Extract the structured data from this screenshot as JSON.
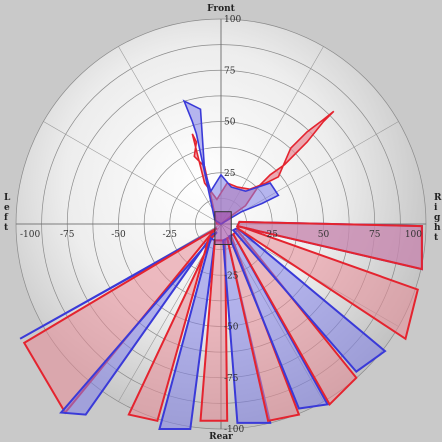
{
  "chart_data": {
    "type": "polar-area",
    "direction_labels": {
      "front": "Front",
      "rear": "Rear",
      "left": "Left",
      "right": "Right"
    },
    "radial_ticks": {
      "vertical": [
        "100",
        "75",
        "50",
        "25",
        "-25",
        "-50",
        "-75",
        "-100"
      ],
      "horizontal": [
        "-100",
        "-75",
        "-50",
        "-25",
        "25",
        "50",
        "75",
        "100"
      ]
    },
    "range": [
      -100,
      100
    ],
    "grid": true,
    "colors": {
      "blue": "#3a3ad8",
      "red": "#e4242f",
      "blue_fill": "#8080e8",
      "red_fill": "#e88a95",
      "purple_fill": "#a04aa8"
    },
    "series": [
      {
        "color": "blue",
        "points": [
          [
            -2,
            -2
          ],
          [
            -98,
            -56
          ],
          [
            -5,
            -4
          ]
        ]
      },
      {
        "color": "red",
        "points": [
          [
            -2,
            -2
          ],
          [
            -96,
            -58
          ],
          [
            -76,
            -92
          ],
          [
            -5,
            -5
          ]
        ]
      },
      {
        "color": "blue",
        "points": [
          [
            -2,
            -4
          ],
          [
            -78,
            -92
          ],
          [
            -66,
            -93
          ],
          [
            -4,
            -5
          ]
        ]
      },
      {
        "color": "red",
        "points": [
          [
            -4,
            -6
          ],
          [
            -45,
            -93
          ],
          [
            -31,
            -96
          ],
          [
            -6,
            -7
          ]
        ]
      },
      {
        "color": "blue",
        "points": [
          [
            -5,
            -7
          ],
          [
            -30,
            -100
          ],
          [
            -15,
            -100
          ],
          [
            -3,
            -8
          ]
        ]
      },
      {
        "color": "red",
        "points": [
          [
            -3,
            -8
          ],
          [
            -10,
            -96
          ],
          [
            3,
            -96
          ],
          [
            2,
            -8
          ]
        ]
      },
      {
        "color": "blue",
        "points": [
          [
            1,
            -8
          ],
          [
            8,
            -97
          ],
          [
            24,
            -97
          ],
          [
            3,
            -7
          ]
        ]
      },
      {
        "color": "red",
        "points": [
          [
            3,
            -7
          ],
          [
            23,
            -96
          ],
          [
            38,
            -93
          ],
          [
            5,
            -6
          ]
        ]
      },
      {
        "color": "blue",
        "points": [
          [
            4,
            -6
          ],
          [
            38,
            -90
          ],
          [
            52,
            -88
          ],
          [
            6,
            -5
          ]
        ]
      },
      {
        "color": "red",
        "points": [
          [
            6,
            -5
          ],
          [
            53,
            -88
          ],
          [
            66,
            -75
          ],
          [
            8,
            -3
          ]
        ]
      },
      {
        "color": "blue",
        "points": [
          [
            6,
            -3
          ],
          [
            66,
            -72
          ],
          [
            80,
            -62
          ],
          [
            8,
            -2
          ]
        ]
      },
      {
        "color": "red",
        "points": [
          [
            8,
            -2
          ],
          [
            90,
            -56
          ],
          [
            96,
            -32
          ],
          [
            9,
            -1
          ]
        ]
      },
      {
        "color": "blue",
        "points": [
          [
            8,
            -1
          ],
          [
            98,
            -22
          ],
          [
            98,
            -1
          ],
          [
            9,
            1
          ]
        ]
      },
      {
        "color": "red",
        "points": [
          [
            8,
            -1
          ],
          [
            98,
            -22
          ],
          [
            98,
            -1
          ],
          [
            9,
            1
          ]
        ]
      }
    ],
    "front_shape": {
      "red": [
        [
          -2,
          0
        ],
        [
          -8,
          28
        ],
        [
          -13,
          33
        ],
        [
          -12,
          40
        ],
        [
          -14,
          44
        ],
        [
          -8,
          20
        ],
        [
          -2,
          12
        ],
        [
          3,
          20
        ],
        [
          8,
          18
        ],
        [
          14,
          17
        ],
        [
          22,
          20
        ],
        [
          28,
          23
        ],
        [
          34,
          37
        ],
        [
          42,
          45
        ],
        [
          50,
          51
        ],
        [
          55,
          55
        ],
        [
          50,
          50
        ],
        [
          42,
          40
        ],
        [
          31,
          29
        ],
        [
          24,
          24
        ],
        [
          18,
          18
        ],
        [
          12,
          9
        ],
        [
          5,
          4
        ],
        [
          0,
          0
        ]
      ],
      "blue": [
        [
          -3,
          2
        ],
        [
          -12,
          44
        ],
        [
          -14,
          50
        ],
        [
          -18,
          60
        ],
        [
          -10,
          56
        ],
        [
          -8,
          26
        ],
        [
          -5,
          16
        ],
        [
          0,
          24
        ],
        [
          5,
          18
        ],
        [
          12,
          16
        ],
        [
          18,
          18
        ],
        [
          24,
          20
        ],
        [
          28,
          14
        ],
        [
          20,
          10
        ],
        [
          10,
          6
        ],
        [
          5,
          3
        ],
        [
          0,
          0
        ]
      ]
    },
    "center_box": {
      "x": [
        -3,
        5
      ],
      "y": [
        -10,
        6
      ]
    }
  }
}
